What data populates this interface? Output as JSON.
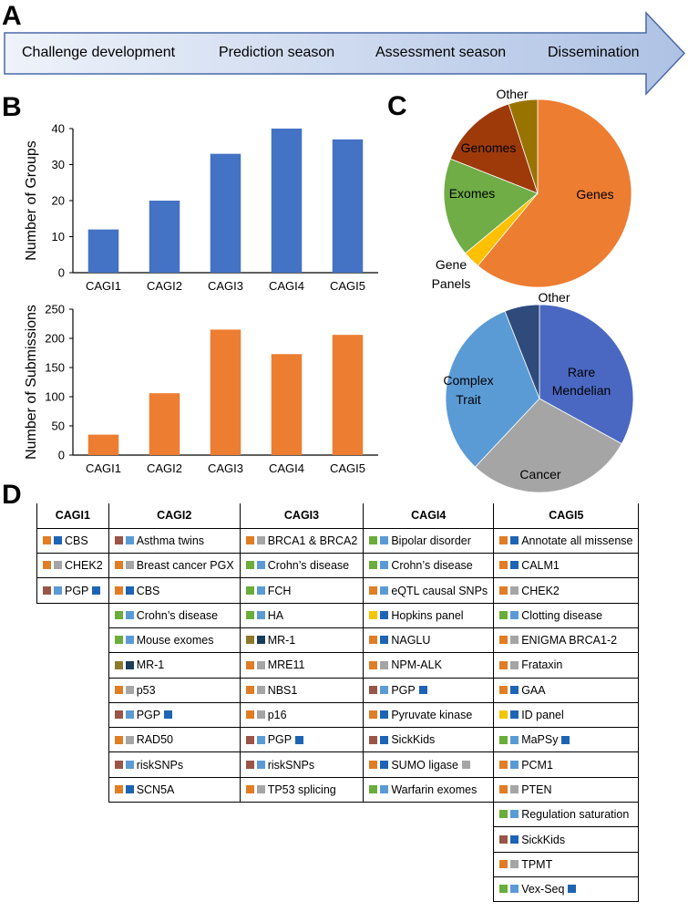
{
  "panels": {
    "a": "A",
    "b": "B",
    "c": "C",
    "d": "D"
  },
  "timeline": {
    "stages": [
      "Challenge development",
      "Prediction season",
      "Assessment season",
      "Dissemination"
    ],
    "colors": {
      "light": "#eef2fa",
      "dark": "#aec2e4",
      "border": "#4a6aa8"
    }
  },
  "chart_data": [
    {
      "type": "bar",
      "title": "",
      "categories": [
        "CAGI1",
        "CAGI2",
        "CAGI3",
        "CAGI4",
        "CAGI5"
      ],
      "values": [
        12,
        20,
        33,
        40,
        37
      ],
      "ylabel": "Number of Groups",
      "xlabel": "",
      "ylim": [
        0,
        40
      ],
      "yticks": [
        "0",
        "10",
        "20",
        "30",
        "40"
      ],
      "color": "#4472c4"
    },
    {
      "type": "bar",
      "title": "",
      "categories": [
        "CAGI1",
        "CAGI2",
        "CAGI3",
        "CAGI4",
        "CAGI5"
      ],
      "values": [
        35,
        106,
        215,
        173,
        206
      ],
      "ylabel": "Number of Submissions",
      "xlabel": "",
      "ylim": [
        0,
        250
      ],
      "yticks": [
        "0",
        "50",
        "100",
        "150",
        "200",
        "250"
      ],
      "color": "#ed7d31"
    },
    {
      "type": "pie",
      "title": "",
      "slices": [
        {
          "label": "Genes",
          "value": 61,
          "color": "#ed7d31"
        },
        {
          "label": "Gene Panels",
          "value": 3,
          "color": "#ffc000"
        },
        {
          "label": "Exomes",
          "value": 17,
          "color": "#70ad47"
        },
        {
          "label": "Genomes",
          "value": 14,
          "color": "#9e3a0a"
        },
        {
          "label": "Other",
          "value": 5,
          "color": "#997300"
        }
      ]
    },
    {
      "type": "pie",
      "title": "",
      "slices": [
        {
          "label": "Rare Mendelian",
          "value": 33,
          "color": "#4a68c2"
        },
        {
          "label": "Cancer",
          "value": 29,
          "color": "#a5a5a5"
        },
        {
          "label": "Complex Trait",
          "value": 32,
          "color": "#5b9bd5"
        },
        {
          "label": "Other",
          "value": 6,
          "color": "#2f4b7c"
        }
      ]
    }
  ],
  "pie_labels": {
    "top": {
      "genes": "Genes",
      "gene_panels_1": "Gene",
      "gene_panels_2": "Panels",
      "exomes": "Exomes",
      "genomes": "Genomes",
      "other": "Other"
    },
    "bottom": {
      "rare_1": "Rare",
      "rare_2": "Mendelian",
      "cancer": "Cancer",
      "complex_1": "Complex",
      "complex_2": "Trait",
      "other": "Other"
    }
  },
  "table": {
    "headers": [
      "CAGI1",
      "CAGI2",
      "CAGI3",
      "CAGI4",
      "CAGI5"
    ],
    "square_colors": {
      "orange": "#e07d25",
      "green": "#6aad3a",
      "brown": "#9a5548",
      "olive": "#8c7a2c",
      "yellow": "#f2c700",
      "lightblue": "#5b9bd5",
      "darkblue": "#1e64b4",
      "navy": "#1c3d5a",
      "gray": "#a5a5a5"
    },
    "columns": [
      [
        {
          "text": "CBS",
          "sq": [
            "orange",
            "darkblue"
          ]
        },
        {
          "text": "CHEK2",
          "sq": [
            "orange",
            "gray"
          ]
        },
        {
          "text": "PGP",
          "sq": [
            "brown",
            "lightblue"
          ],
          "after": [
            "darkblue"
          ]
        }
      ],
      [
        {
          "text": "Asthma twins",
          "sq": [
            "brown",
            "lightblue"
          ]
        },
        {
          "text": "Breast cancer PGX",
          "sq": [
            "orange",
            "gray"
          ]
        },
        {
          "text": "CBS",
          "sq": [
            "orange",
            "darkblue"
          ]
        },
        {
          "text": "Crohn’s disease",
          "sq": [
            "green",
            "lightblue"
          ]
        },
        {
          "text": "Mouse exomes",
          "sq": [
            "green",
            "lightblue"
          ]
        },
        {
          "text": "MR-1",
          "sq": [
            "olive",
            "navy"
          ]
        },
        {
          "text": "p53",
          "sq": [
            "orange",
            "gray"
          ]
        },
        {
          "text": "PGP",
          "sq": [
            "brown",
            "lightblue"
          ],
          "after": [
            "darkblue"
          ]
        },
        {
          "text": "RAD50",
          "sq": [
            "orange",
            "gray"
          ]
        },
        {
          "text": "riskSNPs",
          "sq": [
            "brown",
            "lightblue"
          ]
        },
        {
          "text": "SCN5A",
          "sq": [
            "orange",
            "darkblue"
          ]
        }
      ],
      [
        {
          "text": "BRCA1 & BRCA2",
          "sq": [
            "orange",
            "gray"
          ]
        },
        {
          "text": "Crohn’s disease",
          "sq": [
            "green",
            "lightblue"
          ]
        },
        {
          "text": "FCH",
          "sq": [
            "green",
            "lightblue"
          ]
        },
        {
          "text": "HA",
          "sq": [
            "green",
            "lightblue"
          ]
        },
        {
          "text": "MR-1",
          "sq": [
            "olive",
            "navy"
          ]
        },
        {
          "text": "MRE11",
          "sq": [
            "orange",
            "gray"
          ]
        },
        {
          "text": "NBS1",
          "sq": [
            "orange",
            "gray"
          ]
        },
        {
          "text": "p16",
          "sq": [
            "orange",
            "gray"
          ]
        },
        {
          "text": "PGP",
          "sq": [
            "brown",
            "lightblue"
          ],
          "after": [
            "darkblue"
          ]
        },
        {
          "text": "riskSNPs",
          "sq": [
            "brown",
            "lightblue"
          ]
        },
        {
          "text": "TP53 splicing",
          "sq": [
            "orange",
            "gray"
          ]
        }
      ],
      [
        {
          "text": "Bipolar disorder",
          "sq": [
            "green",
            "lightblue"
          ]
        },
        {
          "text": "Crohn’s disease",
          "sq": [
            "green",
            "lightblue"
          ]
        },
        {
          "text": "eQTL causal SNPs",
          "sq": [
            "orange",
            "lightblue"
          ]
        },
        {
          "text": "Hopkins panel",
          "sq": [
            "yellow",
            "darkblue"
          ]
        },
        {
          "text": "NAGLU",
          "sq": [
            "orange",
            "darkblue"
          ]
        },
        {
          "text": "NPM-ALK",
          "sq": [
            "orange",
            "gray"
          ]
        },
        {
          "text": "PGP",
          "sq": [
            "brown",
            "lightblue"
          ],
          "after": [
            "darkblue"
          ]
        },
        {
          "text": "Pyruvate kinase",
          "sq": [
            "orange",
            "darkblue"
          ]
        },
        {
          "text": "SickKids",
          "sq": [
            "brown",
            "darkblue"
          ]
        },
        {
          "text": "SUMO ligase",
          "sq": [
            "orange",
            "darkblue"
          ],
          "after": [
            "gray"
          ]
        },
        {
          "text": "Warfarin exomes",
          "sq": [
            "green",
            "lightblue"
          ]
        }
      ],
      [
        {
          "text": "Annotate all missense",
          "sq": [
            "orange",
            "darkblue"
          ]
        },
        {
          "text": "CALM1",
          "sq": [
            "orange",
            "darkblue"
          ]
        },
        {
          "text": "CHEK2",
          "sq": [
            "orange",
            "gray"
          ]
        },
        {
          "text": "Clotting disease",
          "sq": [
            "green",
            "lightblue"
          ]
        },
        {
          "text": "ENIGMA BRCA1-2",
          "sq": [
            "orange",
            "gray"
          ]
        },
        {
          "text": "Frataxin",
          "sq": [
            "orange",
            "gray"
          ]
        },
        {
          "text": "GAA",
          "sq": [
            "orange",
            "darkblue"
          ]
        },
        {
          "text": "ID panel",
          "sq": [
            "yellow",
            "darkblue"
          ]
        },
        {
          "text": "MaPSy",
          "sq": [
            "green",
            "lightblue"
          ],
          "after": [
            "darkblue"
          ]
        },
        {
          "text": "PCM1",
          "sq": [
            "orange",
            "lightblue"
          ]
        },
        {
          "text": "PTEN",
          "sq": [
            "orange",
            "gray"
          ]
        },
        {
          "text": "Regulation saturation",
          "sq": [
            "green",
            "lightblue"
          ]
        },
        {
          "text": "SickKids",
          "sq": [
            "brown",
            "darkblue"
          ]
        },
        {
          "text": "TPMT",
          "sq": [
            "orange",
            "gray"
          ]
        },
        {
          "text": "Vex-Seq",
          "sq": [
            "green",
            "lightblue"
          ],
          "after": [
            "darkblue"
          ]
        }
      ]
    ]
  }
}
